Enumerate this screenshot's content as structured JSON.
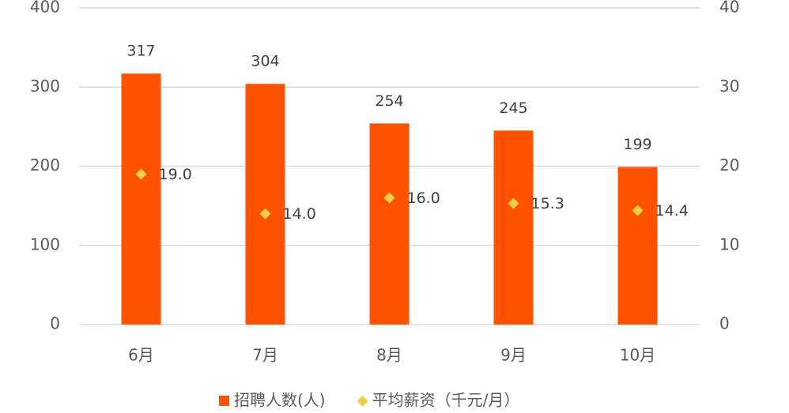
{
  "chart_data": {
    "type": "bar",
    "categories": [
      "6月",
      "7月",
      "8月",
      "9月",
      "10月"
    ],
    "series": [
      {
        "name": "招聘人数(人)",
        "type": "bar",
        "color": "#ff5200",
        "values": [
          317,
          304,
          254,
          245,
          199
        ]
      },
      {
        "name": "平均薪资（千元/月）",
        "type": "scatter",
        "axis": "y2",
        "color": "#f2cf48",
        "values": [
          19.0,
          14.0,
          16.0,
          15.3,
          14.4
        ],
        "value_labels": [
          "19.0",
          "14.0",
          "16.0",
          "15.3",
          "14.4"
        ]
      }
    ],
    "ylim": [
      0,
      400
    ],
    "yticks": [
      0,
      100,
      200,
      300,
      400
    ],
    "y2lim": [
      0,
      40
    ],
    "y2ticks": [
      0,
      10,
      20,
      30,
      40
    ],
    "grid": true,
    "legend": "bottom"
  }
}
